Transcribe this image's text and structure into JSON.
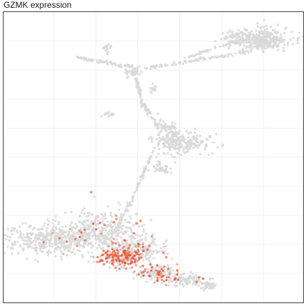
{
  "chart_data": {
    "type": "scatter",
    "title": "GZMK expression",
    "xlabel": "",
    "ylabel": "",
    "grid": true,
    "xlim": [
      0,
      100
    ],
    "ylim": [
      0,
      100
    ],
    "colors": {
      "background_cells": "#d9d9d9",
      "expressing_cells": "#f0502d",
      "gridline": "#ebebeb",
      "panel_border": "#333333"
    },
    "clusters": [
      {
        "name": "top-right-lobe",
        "shape": "ellipse",
        "cx": 85,
        "cy": 90.7,
        "rx": 10,
        "ry": 3.8,
        "n": 260,
        "expr": 0.0
      },
      {
        "name": "top-right-lobe-inner",
        "shape": "ellipse",
        "cx": 87,
        "cy": 89.5,
        "rx": 6,
        "ry": 2.6,
        "n": 120,
        "expr": 0.0
      },
      {
        "name": "top-left-fragment",
        "shape": "ellipse",
        "cx": 34.5,
        "cy": 88.2,
        "rx": 1.5,
        "ry": 1.2,
        "n": 12,
        "expr": 0.0
      },
      {
        "name": "top-junction",
        "shape": "ellipse",
        "cx": 43,
        "cy": 79.5,
        "rx": 2.8,
        "ry": 1.6,
        "n": 40,
        "expr": 0.0
      },
      {
        "name": "small-left-blob",
        "shape": "ellipse",
        "cx": 35,
        "cy": 64.8,
        "rx": 1.6,
        "ry": 1.1,
        "n": 14,
        "expr": 0.0
      },
      {
        "name": "small-mid-blob",
        "shape": "ellipse",
        "cx": 50,
        "cy": 73.5,
        "rx": 1.0,
        "ry": 2.0,
        "n": 14,
        "expr": 0.0
      },
      {
        "name": "middle-right-blob",
        "shape": "ellipse",
        "cx": 59,
        "cy": 54.8,
        "rx": 9,
        "ry": 3.6,
        "n": 230,
        "expr": 0.0
      },
      {
        "name": "middle-right-blob-upper",
        "shape": "ellipse",
        "cx": 54,
        "cy": 59.5,
        "rx": 4,
        "ry": 3.5,
        "n": 70,
        "expr": 0.0
      },
      {
        "name": "middle-blob-tail",
        "shape": "ellipse",
        "cx": 52.5,
        "cy": 46.3,
        "rx": 3.5,
        "ry": 1.8,
        "n": 40,
        "expr": 0.0
      },
      {
        "name": "bottom-left-mass",
        "shape": "ellipse",
        "cx": 18,
        "cy": 21.5,
        "rx": 15,
        "ry": 4.8,
        "n": 520,
        "expr": 0.02
      },
      {
        "name": "bottom-left-mass-upper",
        "shape": "ellipse",
        "cx": 33,
        "cy": 25.5,
        "rx": 12,
        "ry": 6,
        "n": 300,
        "expr": 0.05
      },
      {
        "name": "bottom-center-core",
        "shape": "ellipse",
        "cx": 39,
        "cy": 15.8,
        "rx": 7,
        "ry": 3.2,
        "n": 320,
        "expr": 0.45
      },
      {
        "name": "bottom-right-arm-1",
        "shape": "ellipse",
        "cx": 51,
        "cy": 10.2,
        "rx": 6.5,
        "ry": 2.2,
        "n": 160,
        "expr": 0.25
      },
      {
        "name": "bottom-right-arm-2",
        "shape": "ellipse",
        "cx": 61,
        "cy": 7.6,
        "rx": 6,
        "ry": 1.8,
        "n": 110,
        "expr": 0.12
      },
      {
        "name": "bottom-right-tip",
        "shape": "ellipse",
        "cx": 68.5,
        "cy": 5.7,
        "rx": 2.2,
        "ry": 1.1,
        "n": 40,
        "expr": 0.02
      },
      {
        "name": "bottom-mid-scatter",
        "shape": "ellipse",
        "cx": 46,
        "cy": 18.5,
        "rx": 8,
        "ry": 4,
        "n": 140,
        "expr": 0.08
      }
    ],
    "trails": [
      {
        "name": "top-left-arm",
        "from": [
          24,
          84.5
        ],
        "to": [
          43,
          81.0
        ],
        "n": 70,
        "spread": 0.5,
        "expr": 0.0
      },
      {
        "name": "top-right-arm-lower",
        "from": [
          47,
          80.5
        ],
        "to": [
          82,
          86.5
        ],
        "n": 90,
        "spread": 0.6,
        "expr": 0.0
      },
      {
        "name": "top-right-arm-upper",
        "from": [
          60,
          84.0
        ],
        "to": [
          82,
          91.5
        ],
        "n": 60,
        "spread": 0.5,
        "expr": 0.0
      },
      {
        "name": "top-right-arm-top",
        "from": [
          74,
          91.0
        ],
        "to": [
          80,
          93.0
        ],
        "n": 25,
        "spread": 0.4,
        "expr": 0.0
      },
      {
        "name": "top-stem",
        "from": [
          34.8,
          85.8
        ],
        "to": [
          34.5,
          88.0
        ],
        "n": 8,
        "spread": 0.3,
        "expr": 0.0
      },
      {
        "name": "junction-down",
        "from": [
          44,
          78.5
        ],
        "to": [
          46,
          69.5
        ],
        "n": 40,
        "spread": 0.5,
        "expr": 0.0
      },
      {
        "name": "to-middle-blob",
        "from": [
          46,
          69.0
        ],
        "to": [
          52,
          60.0
        ],
        "n": 45,
        "spread": 0.7,
        "expr": 0.0
      },
      {
        "name": "middle-down",
        "from": [
          50,
          52.0
        ],
        "to": [
          43,
          36.0
        ],
        "n": 55,
        "spread": 0.5,
        "expr": 0.0
      },
      {
        "name": "middle-down-lower",
        "from": [
          43,
          36.0
        ],
        "to": [
          38,
          26.0
        ],
        "n": 35,
        "spread": 0.8,
        "expr": 0.0
      }
    ],
    "ticks_x": [
      0,
      16.8,
      30.8,
      44.8,
      58.8,
      72.8,
      86.8,
      100
    ],
    "ticks_y": [
      0,
      10.0,
      20.0,
      30.0,
      40.0,
      50.0,
      60.0,
      70.0,
      80.0,
      90.0,
      100
    ]
  }
}
